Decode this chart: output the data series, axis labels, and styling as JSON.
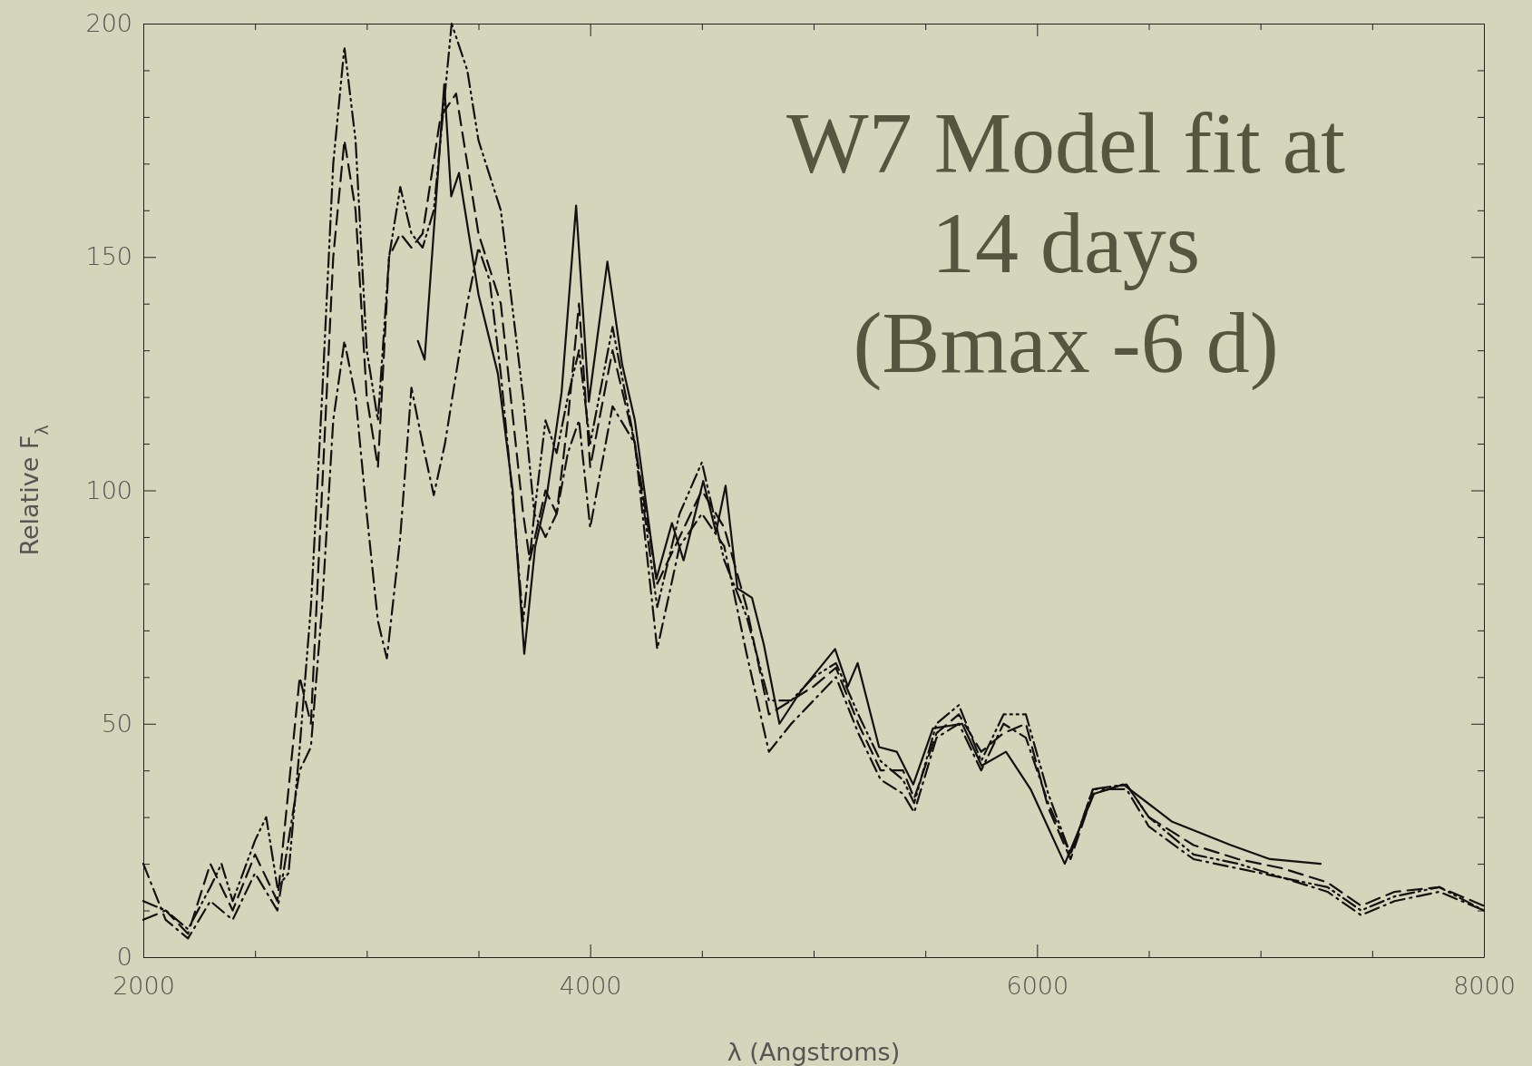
{
  "chart_data": {
    "type": "line",
    "title": "W7 Model fit at\n14 days\n(Bmax -6 d)",
    "xlabel": "λ (Angstroms)",
    "ylabel": "Relative F$_{λ}$",
    "xlim": [
      2000,
      8000
    ],
    "ylim": [
      0,
      200
    ],
    "xticks": [
      2000,
      {
        "value": 2500,
        "label": null
      },
      {
        "value": 3000,
        "label": null
      },
      {
        "value": 3500,
        "label": null
      },
      4000,
      {
        "value": 4500,
        "label": null
      },
      {
        "value": 5000,
        "label": null
      },
      {
        "value": 5500,
        "label": null
      },
      6000,
      {
        "value": 6500,
        "label": null
      },
      {
        "value": 7000,
        "label": null
      },
      {
        "value": 7500,
        "label": null
      },
      8000
    ],
    "yticks": [
      0,
      {
        "value": 10,
        "label": null
      },
      {
        "value": 20,
        "label": null
      },
      {
        "value": 30,
        "label": null
      },
      {
        "value": 40,
        "label": null
      },
      50,
      {
        "value": 60,
        "label": null
      },
      {
        "value": 70,
        "label": null
      },
      {
        "value": 80,
        "label": null
      },
      {
        "value": 90,
        "label": null
      },
      100,
      {
        "value": 110,
        "label": null
      },
      {
        "value": 120,
        "label": null
      },
      {
        "value": 130,
        "label": null
      },
      {
        "value": 140,
        "label": null
      },
      150,
      {
        "value": 160,
        "label": null
      },
      {
        "value": 170,
        "label": null
      },
      {
        "value": 180,
        "label": null
      },
      {
        "value": 190,
        "label": null
      },
      200
    ],
    "marker": "none",
    "series": [
      {
        "color": "#111111",
        "line_style": "solid",
        "x": [
          3229,
          3259,
          3347,
          3378,
          3413,
          3500,
          3587,
          3653,
          3705,
          3754,
          3806,
          3872,
          3937,
          3994,
          4077,
          4143,
          4200,
          4296,
          4366,
          4418,
          4506,
          4563,
          4606,
          4659,
          4724,
          4777,
          4847,
          4943,
          5096,
          5153,
          5197,
          5293,
          5372,
          5446,
          5534,
          5665,
          5752,
          5861,
          5971,
          6124,
          6255,
          6386,
          6605,
          6867,
          7042,
          7269
        ],
        "values": [
          132,
          128,
          187,
          163,
          168,
          142,
          125,
          100,
          65,
          88,
          99,
          121,
          161,
          119,
          149,
          127,
          115,
          81,
          93,
          85,
          102,
          91,
          101,
          79,
          77,
          67,
          50,
          57,
          66,
          58,
          63,
          45,
          44,
          37,
          49,
          50,
          41,
          44,
          36,
          20,
          35,
          37,
          29,
          24,
          21,
          20
        ]
      },
      {
        "color": "#111111",
        "line_style": "dashed",
        "x": [
          2000,
          2100,
          2200,
          2300,
          2400,
          2500,
          2600,
          2700,
          2750,
          2800,
          2850,
          2900,
          2950,
          3000,
          3050,
          3100,
          3150,
          3200,
          3250,
          3330,
          3400,
          3500,
          3600,
          3700,
          3730,
          3800,
          3850,
          3900,
          3950,
          4000,
          4100,
          4200,
          4300,
          4400,
          4500,
          4600,
          4700,
          4800,
          4900,
          5000,
          5100,
          5200,
          5300,
          5400,
          5450,
          5550,
          5650,
          5750,
          5850,
          5950,
          6050,
          6150,
          6250,
          6400,
          6500,
          6700,
          6900,
          7100,
          7300,
          7450,
          7600,
          7800,
          8000
        ],
        "values": [
          8,
          10,
          5,
          20,
          10,
          22,
          12,
          60,
          50,
          100,
          150,
          175,
          160,
          120,
          105,
          150,
          155,
          152,
          155,
          180,
          185,
          155,
          140,
          95,
          85,
          100,
          95,
          115,
          140,
          105,
          130,
          110,
          80,
          90,
          100,
          92,
          75,
          52,
          55,
          58,
          62,
          50,
          40,
          40,
          34,
          48,
          52,
          44,
          48,
          50,
          32,
          21,
          35,
          37,
          30,
          24,
          21,
          19,
          16,
          11,
          14,
          15,
          11
        ]
      },
      {
        "color": "#111111",
        "line_style": "dashdot",
        "x": [
          2000,
          2100,
          2200,
          2300,
          2400,
          2500,
          2600,
          2700,
          2750,
          2800,
          2850,
          2900,
          2950,
          3000,
          3050,
          3090,
          3150,
          3200,
          3250,
          3300,
          3350,
          3450,
          3500,
          3550,
          3600,
          3650,
          3700,
          3750,
          3800,
          3850,
          3900,
          3950,
          4000,
          4100,
          4200,
          4300,
          4400,
          4500,
          4600,
          4700,
          4800,
          4900,
          5000,
          5100,
          5200,
          5300,
          5400,
          5450,
          5550,
          5650,
          5750,
          5850,
          5950,
          6050,
          6150,
          6250,
          6400,
          6500,
          6700,
          6900,
          7100,
          7300,
          7450,
          7600,
          7800,
          8000
        ],
        "values": [
          20,
          8,
          4,
          12,
          8,
          18,
          10,
          40,
          45,
          75,
          115,
          132,
          120,
          95,
          72,
          64,
          90,
          122,
          110,
          99,
          110,
          140,
          152,
          145,
          125,
          100,
          72,
          95,
          90,
          95,
          108,
          115,
          92,
          118,
          110,
          66,
          88,
          95,
          88,
          65,
          44,
          50,
          55,
          60,
          48,
          38,
          35,
          31,
          47,
          50,
          40,
          50,
          47,
          33,
          22,
          36,
          36,
          28,
          21,
          19,
          17,
          14,
          9,
          12,
          14,
          10
        ]
      },
      {
        "color": "#111111",
        "line_style": "dashdotdot",
        "x": [
          2000,
          2100,
          2200,
          2300,
          2350,
          2400,
          2500,
          2550,
          2600,
          2650,
          2700,
          2750,
          2800,
          2850,
          2900,
          2950,
          3000,
          3050,
          3100,
          3150,
          3200,
          3250,
          3300,
          3380,
          3450,
          3500,
          3600,
          3700,
          3750,
          3800,
          3850,
          3900,
          3950,
          4000,
          4100,
          4200,
          4300,
          4400,
          4500,
          4600,
          4700,
          4800,
          4900,
          5000,
          5100,
          5200,
          5300,
          5400,
          5450,
          5550,
          5650,
          5750,
          5850,
          5950,
          6050,
          6150,
          6250,
          6400,
          6500,
          6700,
          6900,
          7100,
          7300,
          7450,
          7600,
          7800,
          8000
        ],
        "values": [
          12,
          10,
          6,
          15,
          20,
          12,
          25,
          30,
          15,
          18,
          45,
          75,
          120,
          170,
          195,
          175,
          130,
          115,
          150,
          165,
          155,
          152,
          160,
          200,
          190,
          175,
          160,
          120,
          95,
          115,
          108,
          120,
          130,
          110,
          135,
          110,
          75,
          95,
          106,
          85,
          73,
          55,
          55,
          60,
          63,
          52,
          42,
          38,
          33,
          50,
          54,
          42,
          52,
          52,
          35,
          22,
          36,
          37,
          30,
          22,
          20,
          17,
          15,
          10,
          13,
          15,
          10
        ]
      }
    ]
  }
}
